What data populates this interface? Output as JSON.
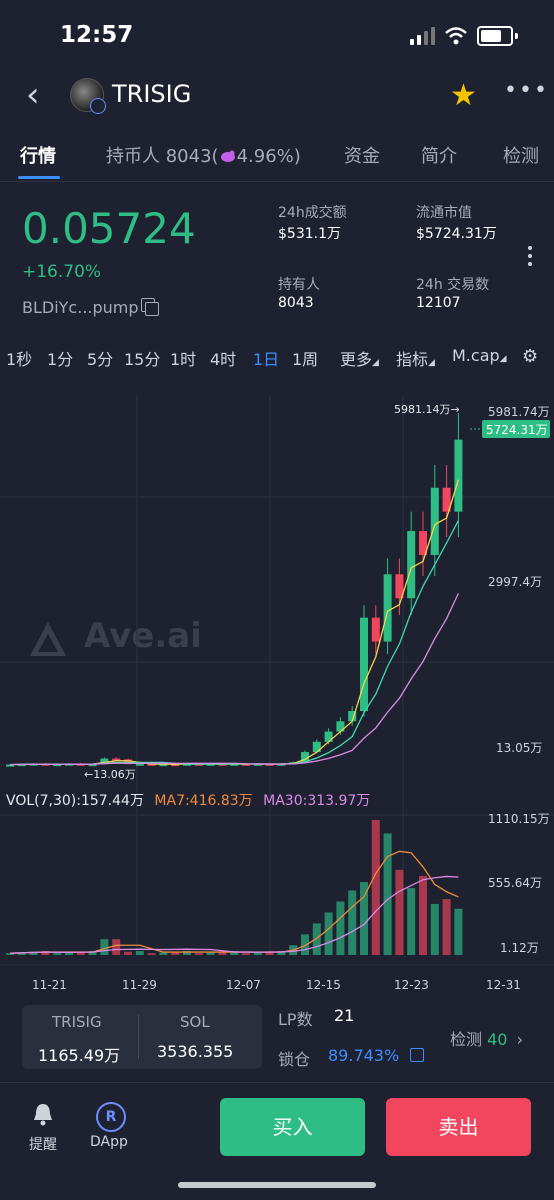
{
  "status_bar": {
    "time": "12:57"
  },
  "header": {
    "title": "TRISIG"
  },
  "tabs": [
    {
      "label": "行情"
    },
    {
      "label": "持币人 8043"
    },
    {
      "label": "4.96%)"
    },
    {
      "label": "资金"
    },
    {
      "label": "简介"
    },
    {
      "label": "检测"
    }
  ],
  "tab_paren": "(",
  "price_block": {
    "price": "0.05724",
    "change": "+16.70%",
    "address": "BLDiYc...pump"
  },
  "stats": {
    "volume_label": "24h成交额",
    "volume_value": "$531.1万",
    "mcap_label": "流通市值",
    "mcap_value": "$5724.31万",
    "holders_label": "持有人",
    "holders_value": "8043",
    "txs_label": "24h 交易数",
    "txs_value": "12107"
  },
  "intervals": [
    "1秒",
    "1分",
    "5分",
    "15分",
    "1时",
    "4时",
    "1日",
    "1周",
    "更多",
    "指标",
    "M.cap"
  ],
  "active_interval": "1日",
  "watermark": "Ave.ai",
  "chart_data": {
    "type": "candlestick",
    "price_axis_labels": [
      "5981.74万",
      "2997.4万",
      "13.05万"
    ],
    "current_value_tag": "5724.31万",
    "high_annotation": "5981.14万→",
    "low_annotation": "←13.06万",
    "volume_axis_labels": [
      "1110.15万",
      "555.64万",
      "1.12万"
    ],
    "x_tick_labels": [
      "11-21",
      "11-29",
      "12-07",
      "12-15",
      "12-23",
      "12-31"
    ],
    "volume_legend": {
      "vol": "VOL(7,30):157.44万",
      "ma7": "MA7:416.83万",
      "ma30": "MA30:313.97万"
    },
    "colors": {
      "up": "#2dbd85",
      "down": "#f2465e",
      "ma7": "#f5d547",
      "ma_mid": "#40d9a8",
      "ma30": "#d98ae8",
      "vol_ma7": "#f08a3c"
    }
  },
  "bottom_info": {
    "token_symbol": "TRISIG",
    "token_amount": "1165.49万",
    "sol_symbol": "SOL",
    "sol_amount": "3536.355",
    "lp_label": "LP数",
    "lp_value": "21",
    "lock_label": "锁仓",
    "lock_value": "89.743%",
    "check_label": "检测",
    "check_value": "40"
  },
  "action_bar": {
    "remind_label": "提醒",
    "dapp_label": "DApp",
    "buy_label": "买入",
    "sell_label": "卖出"
  }
}
